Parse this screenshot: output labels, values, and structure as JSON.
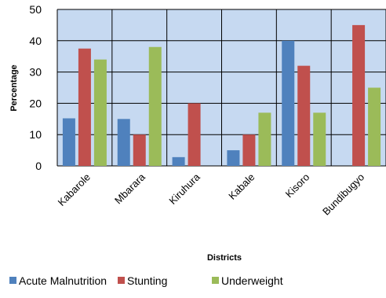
{
  "chart_data": {
    "type": "bar",
    "title": "",
    "xlabel": "Districts",
    "ylabel": "Percentage",
    "ylim": [
      0,
      50
    ],
    "yticks": [
      0,
      10,
      20,
      30,
      40,
      50
    ],
    "grid": true,
    "legend_position": "bottom",
    "categories": [
      "Kabarole",
      "Mbarara",
      "Kiruhura",
      "Kabale",
      "Kisoro",
      "Bundibugyo"
    ],
    "series": [
      {
        "name": "Acute Malnutrition",
        "color": "#4f81bd",
        "values": [
          15.2,
          15,
          2.8,
          5,
          40,
          0
        ]
      },
      {
        "name": "Stunting",
        "color": "#c0504d",
        "values": [
          37.5,
          10,
          20,
          10,
          32,
          45
        ]
      },
      {
        "name": "Underweight",
        "color": "#9bbb59",
        "values": [
          34,
          38,
          0,
          17,
          17,
          25
        ]
      }
    ],
    "plot_background": "#c6d9f1"
  }
}
